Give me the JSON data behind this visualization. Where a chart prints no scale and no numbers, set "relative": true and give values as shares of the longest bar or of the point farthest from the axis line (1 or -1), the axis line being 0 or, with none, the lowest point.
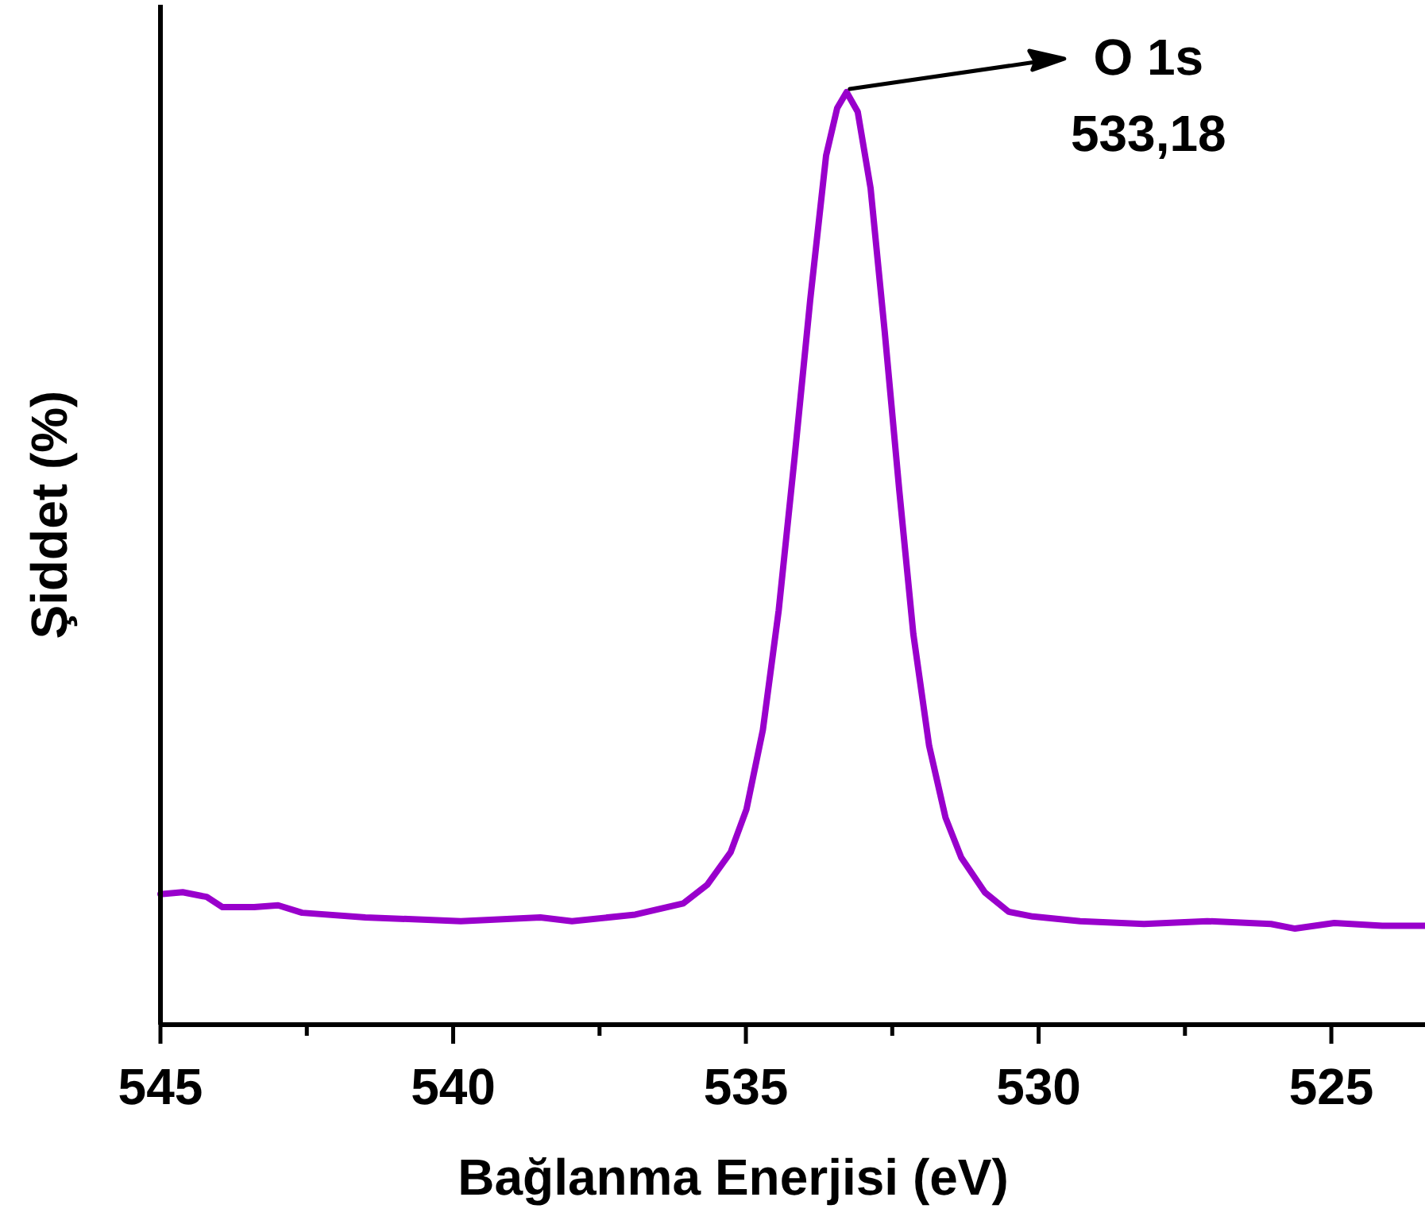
{
  "chart_data": {
    "type": "line",
    "relative": true,
    "xlabel": "Bağlanma Enerjisi (eV)",
    "ylabel": "Şiddet (%)",
    "xlim": [
      545,
      523.4
    ],
    "xticks": [
      545,
      {
        "value": 542.5,
        "label": null
      },
      540,
      {
        "value": 537.5,
        "label": null
      },
      535,
      {
        "value": 532.5,
        "label": null
      },
      530,
      {
        "value": 527.5,
        "label": null
      },
      525
    ],
    "annotations": [
      "O 1s",
      "533,18"
    ],
    "series": [
      {
        "color": "#9900cc",
        "x": [
          545,
          544.62,
          544.21,
          543.94,
          543.4,
          542.99,
          542.58,
          541.5,
          539.87,
          538.51,
          537.97,
          536.89,
          536.07,
          535.66,
          535.26,
          534.99,
          534.71,
          534.44,
          534.17,
          533.9,
          533.63,
          533.44,
          533.28,
          533.09,
          532.87,
          532.63,
          532.38,
          532.14,
          531.87,
          531.59,
          531.32,
          530.92,
          530.51,
          530.1,
          529.29,
          528.2,
          527.12,
          526.03,
          525.62,
          524.95,
          524.13,
          523.4
        ],
        "values": [
          0.14,
          0.142,
          0.137,
          0.126,
          0.126,
          0.128,
          0.12,
          0.115,
          0.111,
          0.115,
          0.111,
          0.118,
          0.13,
          0.15,
          0.185,
          0.231,
          0.316,
          0.444,
          0.607,
          0.778,
          0.932,
          0.983,
          1,
          0.979,
          0.897,
          0.744,
          0.573,
          0.419,
          0.299,
          0.222,
          0.179,
          0.142,
          0.121,
          0.116,
          0.111,
          0.108,
          0.111,
          0.108,
          0.103,
          0.109,
          0.106,
          0.106
        ]
      }
    ]
  }
}
